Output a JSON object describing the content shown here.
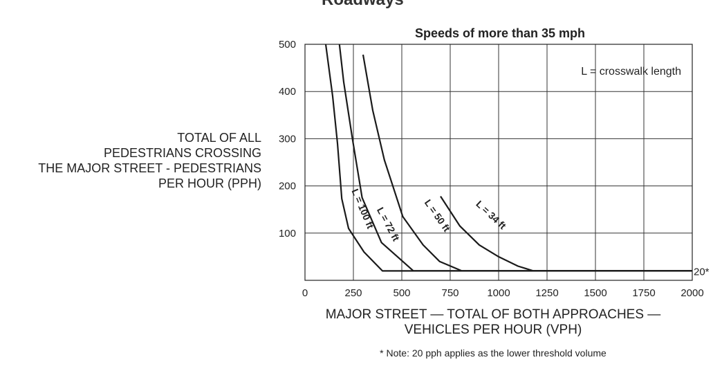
{
  "header": {
    "clipped_title": "Roadways"
  },
  "chart_data": {
    "type": "line",
    "title": "Speeds of more than 35 mph",
    "xlabel_lines": [
      "MAJOR STREET — TOTAL OF BOTH APPROACHES —",
      "VEHICLES PER HOUR (VPH)"
    ],
    "ylabel_lines": [
      "TOTAL OF ALL",
      "PEDESTRIANS CROSSING",
      "THE MAJOR STREET - PEDESTRIANS",
      "PER HOUR (PPH)"
    ],
    "xlim": [
      0,
      2000
    ],
    "ylim": [
      0,
      500
    ],
    "x_ticks": [
      0,
      250,
      500,
      750,
      1000,
      1250,
      1500,
      1750,
      2000
    ],
    "y_ticks": [
      100,
      200,
      300,
      400,
      500
    ],
    "grid": true,
    "annotation": "L = crosswalk length",
    "threshold": {
      "y": 20,
      "label": "20*"
    },
    "note": "* Note: 20 pph applies as the lower threshold volume",
    "series": [
      {
        "name": "L = 100 ft",
        "points": [
          [
            107,
            500
          ],
          [
            143,
            390
          ],
          [
            168,
            290
          ],
          [
            190,
            173
          ],
          [
            225,
            110
          ],
          [
            305,
            60
          ],
          [
            400,
            20
          ],
          [
            2000,
            20
          ]
        ]
      },
      {
        "name": "L = 72 ft",
        "points": [
          [
            178,
            500
          ],
          [
            200,
            420
          ],
          [
            245,
            300
          ],
          [
            295,
            175
          ],
          [
            395,
            80
          ],
          [
            560,
            20
          ],
          [
            2000,
            20
          ]
        ]
      },
      {
        "name": "L = 50 ft",
        "points": [
          [
            300,
            478
          ],
          [
            350,
            360
          ],
          [
            410,
            255
          ],
          [
            505,
            135
          ],
          [
            610,
            75
          ],
          [
            695,
            40
          ],
          [
            810,
            20
          ],
          [
            2000,
            20
          ]
        ]
      },
      {
        "name": "L = 34 ft",
        "points": [
          [
            700,
            178
          ],
          [
            800,
            115
          ],
          [
            900,
            75
          ],
          [
            1000,
            50
          ],
          [
            1100,
            30
          ],
          [
            1180,
            20
          ],
          [
            2000,
            20
          ]
        ]
      }
    ],
    "curve_label_text": [
      "L = 100 ft",
      "L = 72 ft",
      "L = 50 ft",
      "L = 34 ft"
    ]
  }
}
